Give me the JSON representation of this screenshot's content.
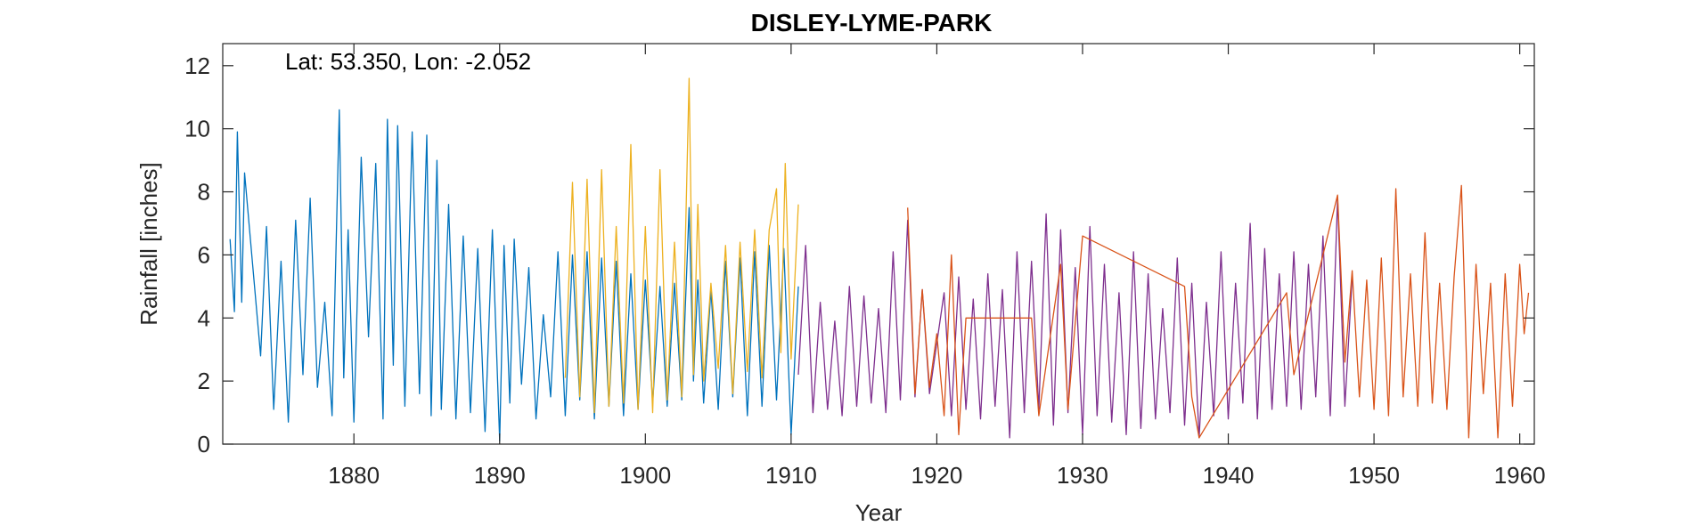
{
  "chart_data": {
    "type": "line",
    "title": "DISLEY-LYME-PARK",
    "xlabel": "Year",
    "ylabel": "Rainfall [inches]",
    "annotation": "Lat: 53.350, Lon: -2.052",
    "xlim": [
      1871,
      1961
    ],
    "ylim": [
      0,
      12.7
    ],
    "xticks": [
      1880,
      1890,
      1900,
      1910,
      1920,
      1930,
      1940,
      1950,
      1960
    ],
    "yticks": [
      0,
      2,
      4,
      6,
      8,
      10,
      12
    ],
    "grid": false,
    "series": [
      {
        "color": "#0072BD",
        "x": [
          1871.5,
          1871.8,
          1872.0,
          1872.3,
          1872.5,
          1873.6,
          1874.0,
          1874.5,
          1875.0,
          1875.5,
          1876.0,
          1876.5,
          1877.0,
          1877.5,
          1878.0,
          1878.5,
          1879.0,
          1879.3,
          1879.6,
          1880.0,
          1880.5,
          1881.0,
          1881.5,
          1882.0,
          1882.3,
          1882.7,
          1883.0,
          1883.5,
          1884.0,
          1884.5,
          1885.0,
          1885.3,
          1885.7,
          1886.0,
          1886.5,
          1887.0,
          1887.5,
          1888.0,
          1888.5,
          1889.0,
          1889.5,
          1890.0,
          1890.3,
          1890.7,
          1891.0,
          1891.5,
          1892.0,
          1892.5,
          1893.0,
          1893.5,
          1894.0,
          1894.5,
          1895.0,
          1895.5,
          1896.0,
          1896.5,
          1897.0,
          1897.5,
          1898.0,
          1898.5,
          1899.0,
          1899.5,
          1900.0,
          1900.5,
          1901.0,
          1901.5,
          1902.0,
          1902.5,
          1903.0,
          1903.3,
          1903.6,
          1904.0,
          1904.5,
          1905.0,
          1905.5,
          1906.0,
          1906.5,
          1907.0,
          1907.5,
          1908.0,
          1908.5,
          1909.0,
          1909.5,
          1910.0,
          1910.5
        ],
        "values": [
          6.5,
          4.2,
          9.9,
          4.5,
          8.6,
          2.8,
          6.9,
          1.1,
          5.8,
          0.7,
          7.1,
          2.2,
          7.8,
          1.8,
          4.5,
          0.9,
          10.6,
          2.1,
          6.8,
          0.7,
          9.1,
          3.4,
          8.9,
          0.8,
          10.3,
          2.5,
          10.1,
          1.2,
          9.9,
          1.6,
          9.8,
          0.9,
          9.0,
          1.1,
          7.6,
          0.8,
          6.6,
          1.0,
          6.2,
          0.4,
          6.8,
          0.1,
          6.3,
          1.3,
          6.5,
          1.9,
          5.6,
          0.8,
          4.1,
          1.5,
          6.1,
          0.9,
          6.0,
          1.4,
          6.1,
          0.8,
          5.9,
          1.2,
          5.8,
          0.9,
          5.4,
          1.1,
          5.2,
          1.3,
          5.0,
          1.2,
          5.1,
          1.4,
          7.5,
          2.0,
          5.2,
          1.3,
          4.9,
          1.1,
          5.8,
          1.5,
          5.9,
          0.9,
          6.1,
          1.2,
          6.3,
          1.4,
          6.2,
          0.3,
          5.0
        ]
      },
      {
        "color": "#EDB120",
        "x": [
          1894.5,
          1895.0,
          1895.5,
          1896.0,
          1896.5,
          1897.0,
          1897.5,
          1898.0,
          1898.5,
          1899.0,
          1899.5,
          1900.0,
          1900.5,
          1901.0,
          1901.5,
          1902.0,
          1902.5,
          1903.0,
          1903.3,
          1903.6,
          1904.0,
          1904.5,
          1905.0,
          1905.5,
          1906.0,
          1906.5,
          1907.0,
          1907.5,
          1908.0,
          1908.5,
          1909.0,
          1909.3,
          1909.6,
          1910.0,
          1910.5
        ],
        "values": [
          2.1,
          8.3,
          1.5,
          8.4,
          1.0,
          8.7,
          1.2,
          6.9,
          1.3,
          9.5,
          1.1,
          6.9,
          1.0,
          8.7,
          1.4,
          6.4,
          1.5,
          11.6,
          2.2,
          7.6,
          2.0,
          5.1,
          2.4,
          6.3,
          1.6,
          6.4,
          2.3,
          6.8,
          2.1,
          6.8,
          8.1,
          2.9,
          8.9,
          2.7,
          7.6
        ]
      },
      {
        "color": "#7E2F8E",
        "x": [
          1910.5,
          1911.0,
          1911.5,
          1912.0,
          1912.5,
          1913.0,
          1913.5,
          1914.0,
          1914.5,
          1915.0,
          1915.5,
          1916.0,
          1916.5,
          1917.0,
          1917.5,
          1918.0,
          1918.5,
          1919.0,
          1919.5,
          1920.5,
          1921.0,
          1921.5,
          1922.0,
          1922.5,
          1923.0,
          1923.5,
          1924.0,
          1924.5,
          1925.0,
          1925.5,
          1926.0,
          1926.5,
          1927.0,
          1927.5,
          1928.0,
          1928.5,
          1929.0,
          1929.5,
          1930.0,
          1930.5,
          1931.0,
          1931.5,
          1932.0,
          1932.5,
          1933.0,
          1933.5,
          1934.0,
          1934.5,
          1935.0,
          1935.5,
          1936.0,
          1936.5,
          1937.0,
          1937.5,
          1938.0,
          1938.5,
          1939.0,
          1939.5,
          1940.0,
          1940.5,
          1941.0,
          1941.5,
          1942.0,
          1942.5,
          1943.0,
          1943.5,
          1944.0,
          1944.5,
          1945.0,
          1945.5,
          1946.0,
          1946.5,
          1947.0,
          1947.5,
          1948.0,
          1948.5
        ],
        "values": [
          2.2,
          6.3,
          1.0,
          4.5,
          1.1,
          3.9,
          0.9,
          5.0,
          1.2,
          4.7,
          1.3,
          4.3,
          1.0,
          6.1,
          1.4,
          7.1,
          1.5,
          4.9,
          1.6,
          4.8,
          0.9,
          5.3,
          1.1,
          4.6,
          0.8,
          5.4,
          1.2,
          4.9,
          0.2,
          6.1,
          1.0,
          5.8,
          1.1,
          7.3,
          0.6,
          6.8,
          1.0,
          5.6,
          0.3,
          6.9,
          0.9,
          5.7,
          0.7,
          4.8,
          0.3,
          6.1,
          0.5,
          5.4,
          0.8,
          4.3,
          1.0,
          5.9,
          0.6,
          5.1,
          0.2,
          4.5,
          0.9,
          6.1,
          0.8,
          5.1,
          1.3,
          7.0,
          0.8,
          6.2,
          1.1,
          5.4,
          1.2,
          6.1,
          1.1,
          5.7,
          1.5,
          6.6,
          0.9,
          7.8,
          1.2,
          5.3
        ]
      },
      {
        "color": "#D95319",
        "x": [
          1918.0,
          1918.5,
          1919.0,
          1919.5,
          1920.0,
          1920.5,
          1921.0,
          1921.5,
          1922.0,
          1926.5,
          1927.0,
          1928.5,
          1929.0,
          1930.0,
          1937.0,
          1937.5,
          1938.0,
          1944.0,
          1944.5,
          1947.5,
          1948.0,
          1948.5,
          1949.0,
          1949.5,
          1950.0,
          1950.5,
          1951.0,
          1951.5,
          1952.0,
          1952.5,
          1953.0,
          1953.5,
          1954.0,
          1954.5,
          1955.0,
          1955.5,
          1956.0,
          1956.5,
          1957.0,
          1957.5,
          1958.0,
          1958.5,
          1959.0,
          1959.5,
          1960.0,
          1960.3,
          1960.6
        ],
        "values": [
          7.5,
          1.6,
          4.9,
          1.8,
          3.5,
          0.9,
          6.0,
          0.3,
          4.0,
          4.0,
          0.9,
          5.7,
          1.1,
          6.6,
          5.0,
          1.5,
          0.2,
          4.8,
          2.2,
          7.9,
          2.6,
          5.5,
          1.5,
          5.2,
          1.1,
          5.9,
          0.9,
          8.1,
          1.5,
          5.4,
          1.2,
          6.7,
          1.3,
          5.1,
          1.1,
          5.3,
          8.2,
          0.2,
          5.7,
          1.6,
          5.1,
          0.2,
          5.4,
          1.2,
          5.7,
          3.5,
          4.8
        ]
      }
    ]
  }
}
